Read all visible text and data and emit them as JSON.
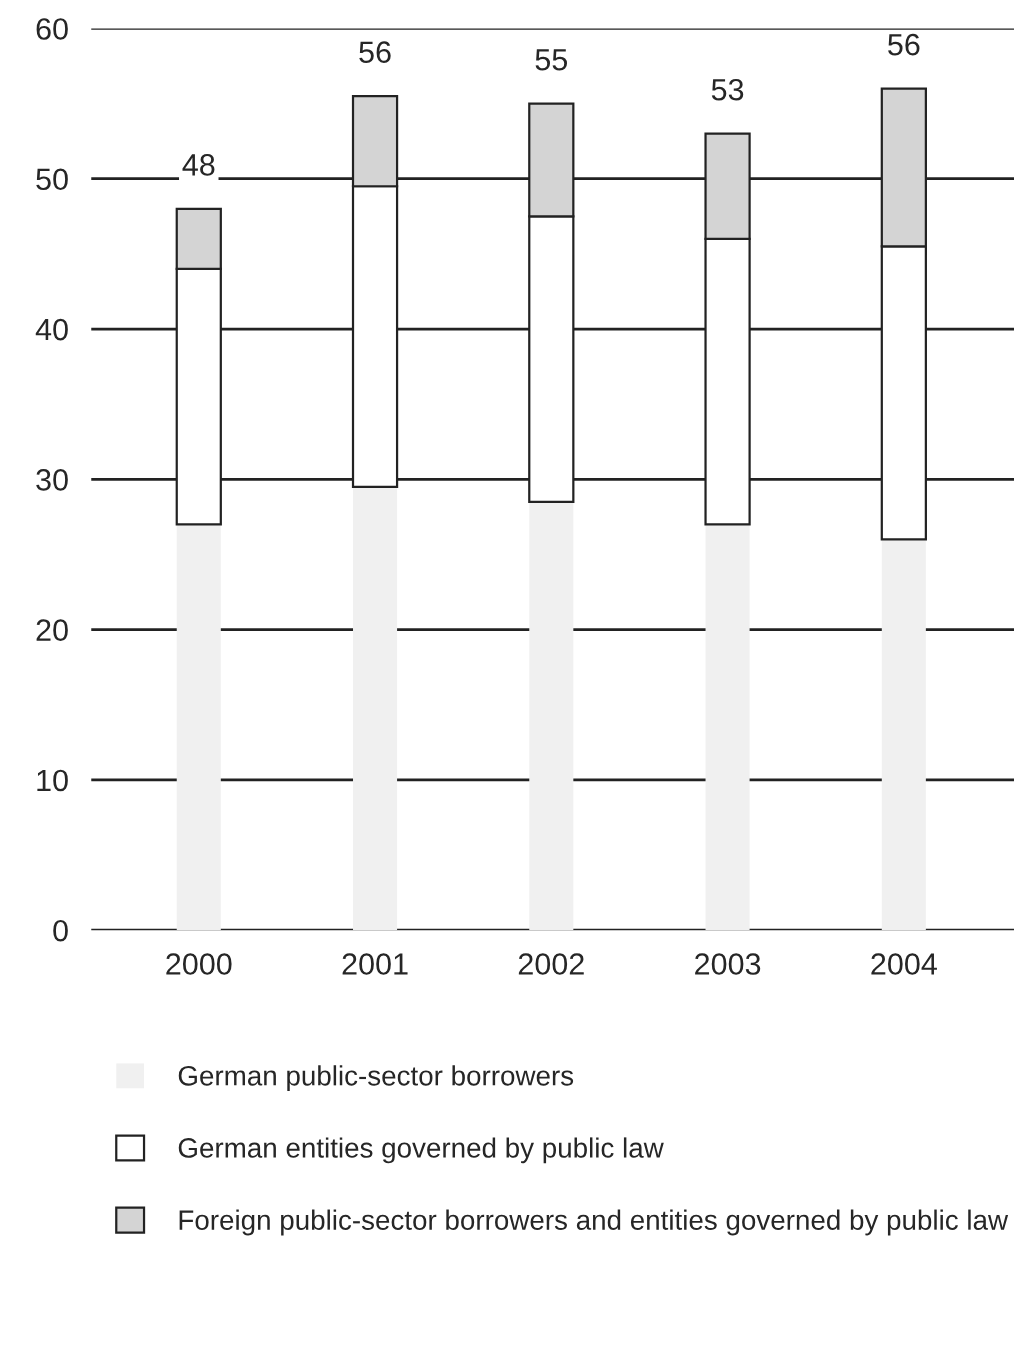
{
  "chart_data": {
    "type": "bar",
    "stacked": true,
    "categories": [
      "2000",
      "2001",
      "2002",
      "2003",
      "2004"
    ],
    "series": [
      {
        "name": "German public-sector borrowers",
        "color": "#f0f0f0",
        "values": [
          27,
          29.5,
          28.5,
          27,
          26
        ]
      },
      {
        "name": "German entities governed by public law",
        "color": "#ffffff",
        "values": [
          17,
          20,
          19,
          19,
          19.5
        ]
      },
      {
        "name": "Foreign public-sector borrowers and entities governed by public law",
        "color": "#d4d4d4",
        "values": [
          4,
          6,
          7.5,
          7,
          10.5
        ]
      }
    ],
    "totals": [
      "48",
      "56",
      "55",
      "53",
      "56"
    ],
    "ylim": [
      0,
      60
    ],
    "yticks": [
      0,
      10,
      20,
      30,
      40,
      50,
      60
    ],
    "grid": "y",
    "legend": "bottom"
  }
}
